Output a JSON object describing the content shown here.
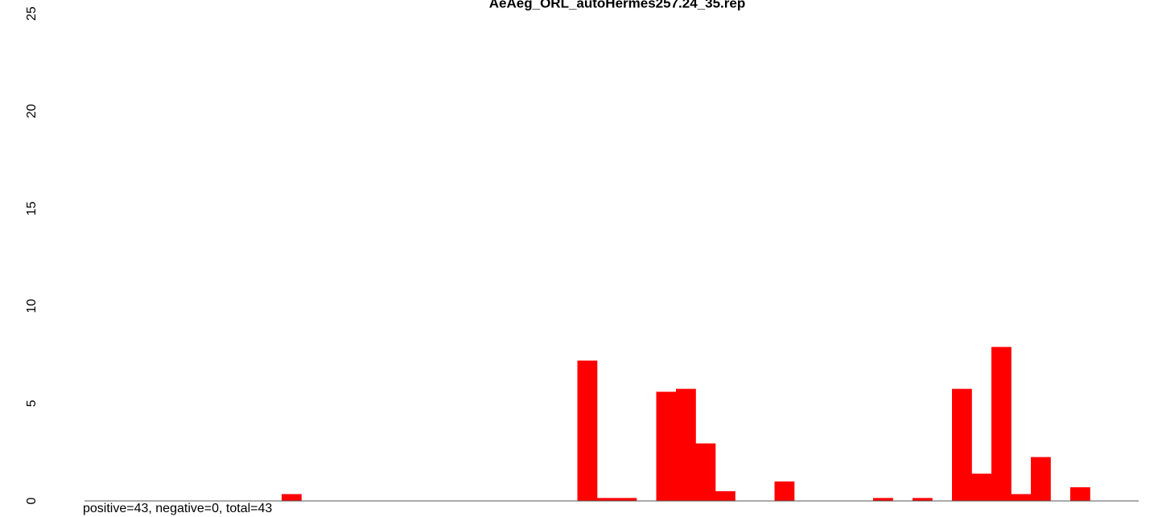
{
  "chart_data": {
    "type": "bar",
    "title": "AeAeg_ORL_autoHermes257.24_35.rep",
    "annotation": "positive=43, negative=0, total=43",
    "categories": [
      null,
      null,
      null,
      null,
      null,
      null,
      null,
      null,
      null,
      null,
      null,
      null,
      null,
      null,
      null,
      null,
      null,
      null,
      null,
      null,
      null,
      null,
      null,
      null,
      null,
      null,
      null,
      null,
      null,
      null,
      null,
      null,
      null,
      null,
      null,
      null,
      null,
      null,
      null,
      null,
      null,
      null,
      null,
      null,
      null,
      null,
      null,
      null,
      null,
      null,
      null,
      null,
      null
    ],
    "values": [
      0,
      0,
      0,
      0,
      0,
      0,
      0,
      0,
      0,
      0,
      0.35,
      0,
      0,
      0,
      0,
      0,
      0,
      0,
      0,
      0,
      0,
      0,
      0,
      0,
      0,
      7.2,
      0.15,
      0.15,
      0,
      5.6,
      5.75,
      2.95,
      0.5,
      0,
      0,
      1.0,
      0,
      0,
      0,
      0,
      0.15,
      0,
      0.15,
      0,
      5.75,
      1.4,
      7.9,
      0.35,
      2.25,
      0,
      0.7,
      0,
      0
    ],
    "color": "#ff0000",
    "ylim": [
      0,
      25
    ],
    "yticks": [
      0,
      5,
      10,
      15,
      20,
      25
    ]
  }
}
